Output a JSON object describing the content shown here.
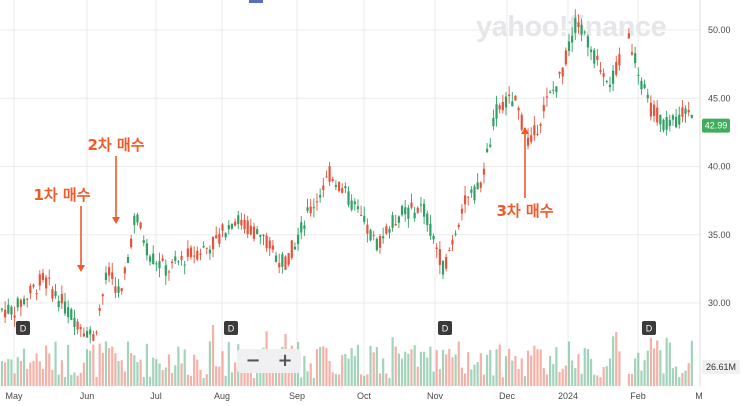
{
  "watermark": "yahoo!finance",
  "current_price_label": "42.99",
  "volume_label": "26.61M",
  "zoom": {
    "minus": "−",
    "plus": "+"
  },
  "dividend_marker": "D",
  "colors": {
    "up": "#2fa065",
    "down": "#e5533d",
    "annotation": "#ef5a28",
    "price_box": "#3fae5c",
    "grid": "#ebebeb"
  },
  "annotations": [
    {
      "label": "1차 매수",
      "month": "Jun"
    },
    {
      "label": "2차 매수",
      "month": "Jun"
    },
    {
      "label": "3차 매수",
      "month": "Dec"
    }
  ],
  "chart_data": {
    "type": "candlestick",
    "y_axis": {
      "ticks": [
        "50.00",
        "45.00",
        "40.00",
        "35.00",
        "30.00"
      ],
      "range": [
        25.5,
        52.5
      ],
      "position": "right"
    },
    "x_axis": {
      "ticks": [
        "May",
        "Jun",
        "Jul",
        "Aug",
        "Sep",
        "Oct",
        "Nov",
        "Dec",
        "2024",
        "Feb",
        "M"
      ]
    },
    "grid": true,
    "price_path": [
      [
        "May",
        29.5
      ],
      [
        "May",
        31.8
      ],
      [
        "May",
        29.0
      ],
      [
        "Jun",
        27.5
      ],
      [
        "Jun",
        32.3
      ],
      [
        "Jun",
        30.5
      ],
      [
        "Jun",
        36.5
      ],
      [
        "Jun",
        33.6
      ],
      [
        "Jul",
        32.4
      ],
      [
        "Jul",
        33.5
      ],
      [
        "Jul",
        34.2
      ],
      [
        "Aug",
        36.2
      ],
      [
        "Aug",
        35.0
      ],
      [
        "Aug",
        32.8
      ],
      [
        "Sep",
        36.5
      ],
      [
        "Sep",
        39.5
      ],
      [
        "Sep",
        37.2
      ],
      [
        "Oct",
        34.3
      ],
      [
        "Oct",
        36.5
      ],
      [
        "Oct",
        37.0
      ],
      [
        "Nov",
        32.5
      ],
      [
        "Nov",
        37.0
      ],
      [
        "Nov",
        38.5
      ],
      [
        "Nov",
        44.5
      ],
      [
        "Dec",
        44.8
      ],
      [
        "Dec",
        41.5
      ],
      [
        "Dec",
        44.5
      ],
      [
        "Dec",
        46.5
      ],
      [
        "2024",
        50.8
      ],
      [
        "2024",
        48.0
      ],
      [
        "2024",
        46.2
      ],
      [
        "2024",
        49.5
      ],
      [
        "Feb",
        44.5
      ],
      [
        "Feb",
        42.8
      ],
      [
        "Feb",
        44.5
      ],
      [
        "M",
        43.0
      ]
    ],
    "dividends": [
      "May",
      "Aug",
      "Nov",
      "Feb"
    ],
    "volume_unit": "M"
  }
}
